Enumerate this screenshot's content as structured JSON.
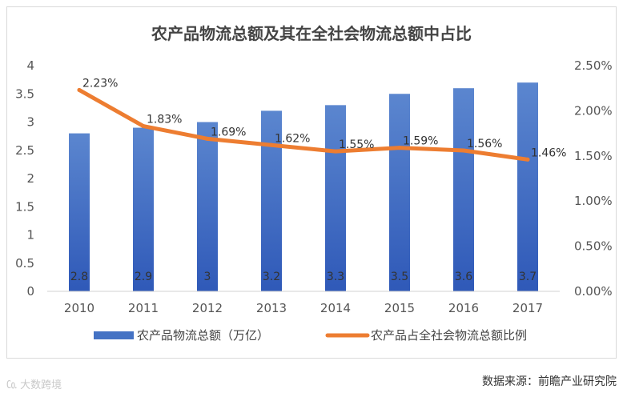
{
  "chart_data": {
    "type": "bar+line",
    "title": "农产品物流总额及其在全社会物流总额中占比",
    "categories": [
      "2010",
      "2011",
      "2012",
      "2013",
      "2014",
      "2015",
      "2016",
      "2017"
    ],
    "series": [
      {
        "name": "农产品物流总额（万亿）",
        "type": "bar",
        "axis": "left",
        "values": [
          2.8,
          2.9,
          3,
          3.2,
          3.3,
          3.5,
          3.6,
          3.7
        ],
        "labels": [
          "2.8",
          "2.9",
          "3",
          "3.2",
          "3.3",
          "3.5",
          "3.6",
          "3.7"
        ],
        "color": "#4472c4"
      },
      {
        "name": "农产品占全社会物流总额比例",
        "type": "line",
        "axis": "right",
        "values": [
          2.23,
          1.83,
          1.69,
          1.62,
          1.55,
          1.59,
          1.56,
          1.46
        ],
        "labels": [
          "2.23%",
          "1.83%",
          "1.69%",
          "1.62%",
          "1.55%",
          "1.59%",
          "1.56%",
          "1.46%"
        ],
        "color": "#ed7d31"
      }
    ],
    "y_left": {
      "min": 0,
      "max": 4,
      "ticks": [
        "0",
        "0.5",
        "1",
        "1.5",
        "2",
        "2.5",
        "3",
        "3.5",
        "4"
      ]
    },
    "y_right": {
      "min": 0,
      "max": 2.5,
      "ticks": [
        "0.00%",
        "0.50%",
        "1.00%",
        "1.50%",
        "2.00%",
        "2.50%"
      ]
    },
    "grid": false,
    "legend": "bottom"
  },
  "footer": {
    "watermark": "大数跨境",
    "source": "数据来源：前瞻产业研究院"
  }
}
